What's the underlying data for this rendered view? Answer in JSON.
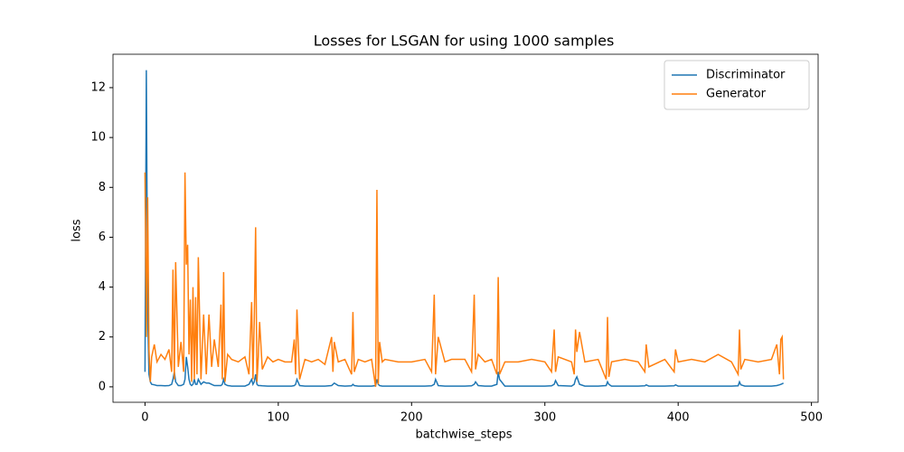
{
  "chart_data": {
    "type": "line",
    "title": "Losses for LSGAN for using 1000 samples",
    "xlabel": "batchwise_steps",
    "ylabel": "loss",
    "x": [
      0,
      1,
      2,
      3,
      4,
      5,
      7,
      9,
      12,
      15,
      18,
      20,
      21,
      22,
      23,
      25,
      27,
      29,
      30,
      31,
      32,
      33,
      34,
      35,
      36,
      37,
      38,
      39,
      40,
      42,
      44,
      46,
      48,
      50,
      52,
      55,
      57,
      58,
      59,
      60,
      62,
      65,
      70,
      75,
      78,
      80,
      81,
      82,
      83,
      84,
      85,
      86,
      88,
      92,
      96,
      100,
      105,
      110,
      112,
      113,
      114,
      116,
      120,
      125,
      130,
      135,
      140,
      141,
      142,
      145,
      150,
      155,
      156,
      157,
      160,
      165,
      170,
      173,
      174,
      175,
      176,
      178,
      180,
      190,
      200,
      210,
      215,
      217,
      218,
      220,
      225,
      230,
      240,
      245,
      247,
      248,
      250,
      255,
      260,
      264,
      265,
      266,
      270,
      280,
      290,
      300,
      305,
      307,
      308,
      310,
      320,
      322,
      323,
      324,
      326,
      330,
      340,
      346,
      347,
      348,
      350,
      360,
      370,
      375,
      376,
      378,
      390,
      397,
      398,
      400,
      410,
      420,
      430,
      440,
      445,
      446,
      447,
      450,
      460,
      470,
      474,
      476,
      477,
      478,
      479
    ],
    "series": [
      {
        "name": "Discriminator",
        "color": "#1f77b4",
        "values": [
          0.6,
          12.7,
          3.0,
          0.5,
          0.2,
          0.1,
          0.08,
          0.05,
          0.05,
          0.04,
          0.05,
          0.1,
          0.3,
          0.6,
          0.2,
          0.05,
          0.05,
          0.1,
          0.3,
          1.2,
          0.8,
          0.3,
          0.1,
          0.05,
          0.1,
          0.3,
          0.1,
          0.1,
          0.3,
          0.1,
          0.2,
          0.15,
          0.15,
          0.1,
          0.05,
          0.05,
          0.05,
          0.1,
          0.3,
          0.1,
          0.05,
          0.03,
          0.03,
          0.03,
          0.1,
          0.3,
          0.1,
          0.2,
          0.5,
          0.1,
          0.05,
          0.05,
          0.04,
          0.03,
          0.03,
          0.03,
          0.03,
          0.03,
          0.05,
          0.1,
          0.3,
          0.05,
          0.03,
          0.03,
          0.03,
          0.03,
          0.05,
          0.1,
          0.15,
          0.05,
          0.03,
          0.04,
          0.1,
          0.05,
          0.03,
          0.03,
          0.03,
          0.05,
          0.3,
          0.1,
          0.05,
          0.03,
          0.03,
          0.03,
          0.03,
          0.03,
          0.04,
          0.1,
          0.3,
          0.05,
          0.03,
          0.03,
          0.03,
          0.04,
          0.1,
          0.2,
          0.05,
          0.03,
          0.03,
          0.1,
          0.6,
          0.3,
          0.03,
          0.03,
          0.03,
          0.03,
          0.04,
          0.1,
          0.25,
          0.05,
          0.03,
          0.1,
          0.3,
          0.4,
          0.1,
          0.03,
          0.03,
          0.05,
          0.2,
          0.1,
          0.03,
          0.03,
          0.03,
          0.04,
          0.08,
          0.03,
          0.03,
          0.04,
          0.08,
          0.03,
          0.03,
          0.03,
          0.03,
          0.03,
          0.04,
          0.2,
          0.08,
          0.03,
          0.03,
          0.03,
          0.05,
          0.08,
          0.1,
          0.12,
          0.15
        ]
      },
      {
        "name": "Generator",
        "color": "#ff7f0e",
        "values": [
          8.6,
          2.0,
          7.6,
          1.5,
          0.2,
          1.2,
          1.7,
          1.0,
          1.3,
          1.1,
          1.5,
          0.6,
          4.7,
          0.3,
          5.0,
          0.8,
          1.8,
          0.6,
          8.6,
          4.9,
          5.7,
          1.3,
          3.5,
          0.2,
          4.0,
          0.3,
          3.6,
          0.5,
          5.2,
          0.3,
          2.9,
          0.5,
          2.9,
          0.8,
          1.9,
          0.8,
          3.3,
          0.3,
          4.6,
          0.2,
          1.3,
          1.1,
          1.0,
          1.2,
          0.5,
          3.4,
          0.3,
          2.7,
          6.4,
          0.2,
          1.2,
          2.6,
          0.7,
          1.2,
          1.0,
          1.1,
          1.0,
          1.0,
          1.9,
          0.5,
          3.1,
          0.3,
          1.1,
          1.0,
          1.1,
          0.9,
          2.0,
          0.6,
          1.8,
          1.0,
          1.1,
          0.5,
          3.0,
          0.6,
          1.1,
          1.0,
          1.1,
          0.0,
          7.9,
          0.1,
          1.8,
          1.0,
          1.1,
          1.0,
          1.0,
          1.1,
          0.6,
          3.7,
          0.5,
          2.0,
          1.0,
          1.1,
          1.1,
          0.6,
          3.7,
          0.7,
          1.3,
          1.0,
          1.1,
          0.5,
          4.4,
          0.5,
          1.0,
          1.0,
          1.1,
          1.0,
          0.6,
          2.3,
          0.6,
          1.2,
          1.0,
          0.5,
          2.3,
          1.4,
          2.2,
          1.0,
          1.1,
          0.3,
          2.8,
          0.4,
          1.0,
          1.1,
          1.0,
          0.6,
          1.7,
          0.8,
          1.1,
          0.6,
          1.5,
          1.0,
          1.1,
          1.0,
          1.3,
          1.0,
          0.5,
          2.3,
          0.7,
          1.1,
          1.0,
          1.1,
          1.7,
          0.5,
          1.9,
          2.0,
          0.3
        ]
      }
    ],
    "xlim": [
      -24,
      505
    ],
    "ylim": [
      -0.62,
      13.34
    ],
    "xticks": [
      0,
      100,
      200,
      300,
      400,
      500
    ],
    "yticks": [
      0,
      2,
      4,
      6,
      8,
      10,
      12
    ],
    "legend": "upper right"
  }
}
